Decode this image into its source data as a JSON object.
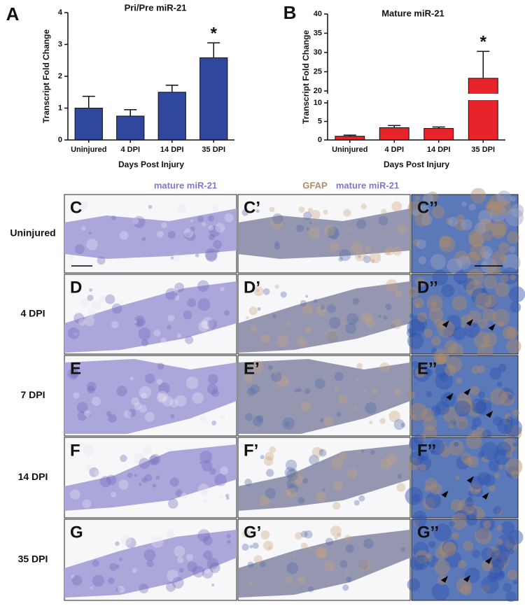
{
  "chart_data": [
    {
      "type": "bar",
      "panel_label": "A",
      "title": "Pri/Pre miR-21",
      "ylabel": "Transcript Fold Change",
      "xlabel": "Days Post Injury",
      "categories": [
        "Uninjured",
        "4 DPI",
        "14 DPI",
        "35 DPI"
      ],
      "values": [
        1.0,
        0.75,
        1.5,
        2.58
      ],
      "errors": [
        0.37,
        0.2,
        0.22,
        0.47
      ],
      "color": "#2f479c",
      "ylim": [
        0,
        4
      ],
      "yticks": [
        0,
        1,
        2,
        3,
        4
      ],
      "annotation": {
        "text": "*",
        "category": "35 DPI"
      }
    },
    {
      "type": "bar",
      "panel_label": "B",
      "title": "Mature miR-21",
      "ylabel": "Transcript Fold Change",
      "xlabel": "Days Post Injury",
      "categories": [
        "Uninjured",
        "4 DPI",
        "14 DPI",
        "35 DPI"
      ],
      "values": [
        1.0,
        3.3,
        3.1,
        23.3
      ],
      "errors": [
        0.3,
        0.6,
        0.4,
        7.0
      ],
      "color": "#e8242b",
      "ylim": [
        0,
        40
      ],
      "axis_break": [
        10,
        20
      ],
      "yticks": [
        0,
        5,
        10,
        20,
        25,
        30,
        35,
        40
      ],
      "annotation": {
        "text": "*",
        "category": "35 DPI"
      }
    }
  ],
  "column_headers": {
    "col1": "mature miR-21",
    "col2_stain": "GFAP",
    "col2_probe": "mature miR-21"
  },
  "rows": [
    {
      "label": "Uninjured",
      "panels": [
        "C",
        "C’",
        "C’’"
      ]
    },
    {
      "label": "4 DPI",
      "panels": [
        "D",
        "D’",
        "D’’"
      ]
    },
    {
      "label": "7 DPI",
      "panels": [
        "E",
        "E’",
        "E’’"
      ]
    },
    {
      "label": "14 DPI",
      "panels": [
        "F",
        "F’",
        "F’’"
      ]
    },
    {
      "label": "35 DPI",
      "panels": [
        "G",
        "G’",
        "G’’"
      ]
    }
  ]
}
